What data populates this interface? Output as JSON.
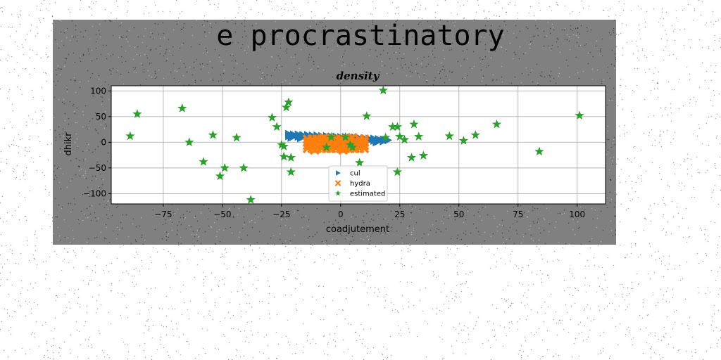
{
  "figure": {
    "suptitle": "e procrastinatory",
    "background_color": "#808080"
  },
  "chart_data": {
    "type": "scatter",
    "title": "density",
    "xlabel": "coadjutement",
    "ylabel": "dhikr",
    "xlim": [
      -97,
      112
    ],
    "ylim": [
      -120,
      110
    ],
    "xticks": [
      "−75",
      "−50",
      "−25",
      "0",
      "25",
      "50",
      "75",
      "100"
    ],
    "xtick_values": [
      -75,
      -50,
      -25,
      0,
      25,
      50,
      75,
      100
    ],
    "yticks": [
      "100",
      "50",
      "0",
      "−50",
      "−100"
    ],
    "ytick_values": [
      100,
      50,
      0,
      -50,
      -100
    ],
    "grid": true,
    "legend_position": "lower-center",
    "series": [
      {
        "name": "cul",
        "marker": "triangle-right",
        "color": "#1f77b4",
        "points": [
          [
            -22,
            16
          ],
          [
            -20,
            15
          ],
          [
            -18,
            15
          ],
          [
            -16,
            14
          ],
          [
            -14,
            14
          ],
          [
            -12,
            13
          ],
          [
            -10,
            13
          ],
          [
            -8,
            12
          ],
          [
            -6,
            12
          ],
          [
            -4,
            11
          ],
          [
            -2,
            11
          ],
          [
            0,
            10
          ],
          [
            2,
            10
          ],
          [
            4,
            9
          ],
          [
            6,
            9
          ],
          [
            8,
            8
          ],
          [
            10,
            8
          ],
          [
            12,
            7
          ],
          [
            14,
            7
          ],
          [
            16,
            6
          ],
          [
            18,
            5
          ],
          [
            20,
            4
          ],
          [
            -22,
            12
          ],
          [
            -20,
            11
          ],
          [
            -18,
            11
          ],
          [
            -16,
            10
          ],
          [
            -14,
            10
          ],
          [
            -12,
            9
          ],
          [
            -10,
            9
          ],
          [
            -8,
            8
          ],
          [
            -6,
            8
          ],
          [
            -4,
            7
          ],
          [
            -2,
            7
          ],
          [
            0,
            6
          ],
          [
            2,
            6
          ],
          [
            4,
            5
          ],
          [
            6,
            5
          ],
          [
            8,
            4
          ],
          [
            10,
            4
          ],
          [
            12,
            3
          ],
          [
            14,
            3
          ],
          [
            16,
            2
          ],
          [
            18,
            2
          ],
          [
            -21,
            9
          ],
          [
            -17,
            8
          ],
          [
            -13,
            7
          ],
          [
            -9,
            6
          ],
          [
            -5,
            5
          ],
          [
            -1,
            4
          ],
          [
            3,
            3
          ],
          [
            7,
            2
          ],
          [
            11,
            1
          ],
          [
            15,
            0
          ]
        ]
      },
      {
        "name": "hydra",
        "marker": "x-filled",
        "color": "#ff7f0e",
        "points": [
          [
            -14,
            6
          ],
          [
            -12,
            6
          ],
          [
            -10,
            6
          ],
          [
            -8,
            6
          ],
          [
            -6,
            6
          ],
          [
            -4,
            6
          ],
          [
            -2,
            6
          ],
          [
            0,
            6
          ],
          [
            2,
            6
          ],
          [
            4,
            6
          ],
          [
            8,
            6
          ],
          [
            10,
            6
          ],
          [
            -14,
            0
          ],
          [
            -12,
            0
          ],
          [
            -10,
            0
          ],
          [
            -8,
            0
          ],
          [
            -6,
            0
          ],
          [
            -4,
            0
          ],
          [
            -2,
            0
          ],
          [
            0,
            0
          ],
          [
            2,
            0
          ],
          [
            4,
            0
          ],
          [
            6,
            0
          ],
          [
            8,
            0
          ],
          [
            10,
            0
          ],
          [
            -14,
            -6
          ],
          [
            -12,
            -6
          ],
          [
            -10,
            -6
          ],
          [
            -8,
            -6
          ],
          [
            -6,
            -6
          ],
          [
            -4,
            -6
          ],
          [
            -2,
            -6
          ],
          [
            0,
            -6
          ],
          [
            2,
            -6
          ],
          [
            4,
            -6
          ],
          [
            6,
            -6
          ],
          [
            8,
            -6
          ],
          [
            10,
            -6
          ],
          [
            -14,
            -12
          ],
          [
            -12,
            -12
          ],
          [
            -10,
            -12
          ],
          [
            -8,
            -12
          ],
          [
            -6,
            -12
          ],
          [
            -4,
            -12
          ],
          [
            -2,
            -12
          ],
          [
            0,
            -12
          ],
          [
            2,
            -12
          ],
          [
            4,
            -12
          ],
          [
            6,
            -12
          ],
          [
            8,
            -12
          ],
          [
            10,
            -12
          ],
          [
            -13,
            -3
          ],
          [
            -9,
            3
          ],
          [
            -5,
            -9
          ],
          [
            -1,
            3
          ],
          [
            3,
            -9
          ],
          [
            7,
            -3
          ],
          [
            -7,
            9
          ],
          [
            1,
            -15
          ],
          [
            -11,
            -15
          ],
          [
            5,
            9
          ]
        ]
      },
      {
        "name": "estimated",
        "marker": "star",
        "color": "#2ca02c",
        "points": [
          [
            -89,
            12
          ],
          [
            -86,
            55
          ],
          [
            -67,
            66
          ],
          [
            -64,
            0
          ],
          [
            -58,
            -38
          ],
          [
            -54,
            14
          ],
          [
            -51,
            -66
          ],
          [
            -49,
            -50
          ],
          [
            -44,
            9
          ],
          [
            -41,
            -50
          ],
          [
            -38,
            -112
          ],
          [
            -29,
            48
          ],
          [
            -27,
            30
          ],
          [
            -25,
            -5
          ],
          [
            -24,
            -8
          ],
          [
            -23,
            68
          ],
          [
            -22,
            78
          ],
          [
            -24,
            -28
          ],
          [
            -21,
            -30
          ],
          [
            -21,
            -58
          ],
          [
            -6,
            -10
          ],
          [
            -4,
            10
          ],
          [
            2,
            10
          ],
          [
            4,
            -5
          ],
          [
            5,
            -10
          ],
          [
            8,
            -40
          ],
          [
            11,
            51
          ],
          [
            18,
            101
          ],
          [
            19,
            9
          ],
          [
            22,
            30
          ],
          [
            24,
            30
          ],
          [
            24,
            -58
          ],
          [
            25,
            11
          ],
          [
            27,
            5
          ],
          [
            30,
            -30
          ],
          [
            31,
            35
          ],
          [
            33,
            11
          ],
          [
            35,
            -26
          ],
          [
            46,
            12
          ],
          [
            52,
            3
          ],
          [
            57,
            14
          ],
          [
            66,
            35
          ],
          [
            84,
            -18
          ],
          [
            101,
            52
          ]
        ]
      }
    ]
  }
}
